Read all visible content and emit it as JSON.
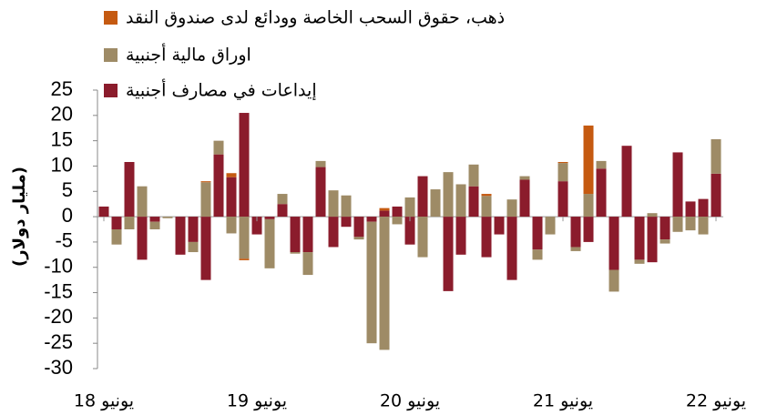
{
  "chart_data": {
    "type": "bar",
    "stacked": true,
    "y_label": "(مليار دولار)",
    "categories": [
      "يونيو 18",
      null,
      null,
      null,
      null,
      null,
      null,
      null,
      null,
      null,
      null,
      null,
      "يونيو 19",
      null,
      null,
      null,
      null,
      null,
      null,
      null,
      null,
      null,
      null,
      null,
      "يونيو 20",
      null,
      null,
      null,
      null,
      null,
      null,
      null,
      null,
      null,
      null,
      null,
      "يونيو 21",
      null,
      null,
      null,
      null,
      null,
      null,
      null,
      null,
      null,
      null,
      null,
      "يونيو 22"
    ],
    "series": [
      {
        "name": "ذهب، حقوق السحب الخاصة وودائع لدى صندوق النقد",
        "color": "#c55a11",
        "values": [
          0,
          0,
          0,
          0,
          0,
          0,
          0,
          0,
          0.2,
          0,
          0.8,
          -0.3,
          0,
          0,
          0,
          0,
          0,
          0,
          0,
          0,
          0,
          0,
          0.5,
          0,
          0,
          0,
          0,
          0,
          0,
          0,
          0.4,
          0,
          0,
          0,
          0,
          0,
          0.2,
          0,
          13.5,
          0,
          0,
          0,
          0,
          0,
          0,
          0,
          0,
          0,
          0
        ]
      },
      {
        "name": "اوراق مالية أجنبية",
        "color": "#9e8b66",
        "values": [
          0,
          -3,
          -2.5,
          6,
          -1.5,
          -0.3,
          0,
          -2,
          6.8,
          2.7,
          -3.3,
          -8.3,
          0,
          -9.7,
          2,
          -0.3,
          -4.5,
          1.2,
          5.2,
          4.2,
          -0.5,
          -24,
          -26.3,
          -1.5,
          3.8,
          -8,
          5.4,
          8.8,
          6.4,
          4.3,
          4.1,
          0,
          3.4,
          0.7,
          -2,
          -3.5,
          3.6,
          -0.8,
          4.5,
          1.5,
          -4.3,
          0,
          -0.8,
          0.7,
          -0.8,
          -3,
          -2.7,
          -3.5,
          6.8
        ]
      },
      {
        "name": "إيداعات في مصارف أجنبية",
        "color": "#8b1c2c",
        "values": [
          2,
          -2.5,
          10.8,
          -8.5,
          -1,
          0,
          -7.5,
          -5,
          -12.5,
          12.3,
          7.8,
          20.5,
          -3.5,
          -0.5,
          2.5,
          -7,
          -7,
          9.8,
          -6,
          -2,
          -4,
          -1,
          1.2,
          2,
          -5.5,
          8,
          0,
          -14.7,
          -7.5,
          6,
          -8,
          -3.5,
          -12.5,
          7.3,
          -6.5,
          0,
          7,
          -6,
          -5,
          9.5,
          -10.5,
          14,
          -8.5,
          -9,
          -4.5,
          12.7,
          3,
          3.5,
          8.5
        ]
      }
    ],
    "ylim": [
      -30,
      25
    ],
    "yticks": [
      -30,
      -25,
      -20,
      -15,
      -10,
      -5,
      0,
      5,
      10,
      15,
      20,
      25
    ],
    "grid": false
  }
}
